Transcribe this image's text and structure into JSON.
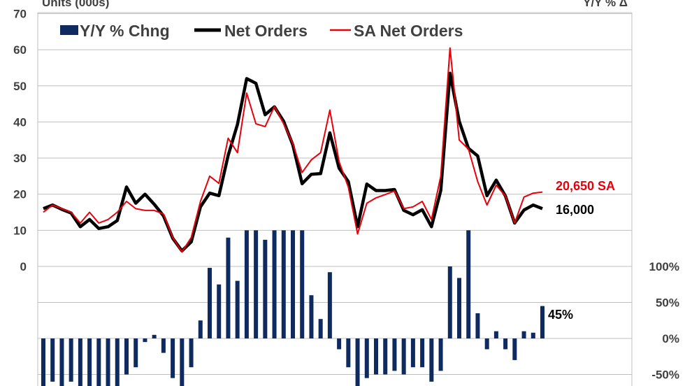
{
  "chart_data": {
    "type": "bar+line",
    "title": "",
    "left_axis": {
      "label": "Units (000s)",
      "ticks": [
        "70",
        "60",
        "50",
        "40",
        "30",
        "20",
        "10",
        "0"
      ],
      "ylim": [
        0,
        70
      ]
    },
    "right_axis": {
      "label": "Y/Y % Δ",
      "ticks": [
        "100%",
        "50%",
        "0%",
        "-50%"
      ]
    },
    "legend": {
      "placement": "top-left",
      "entries": [
        "Y/Y % Chng",
        "Net Orders",
        "SA Net Orders"
      ]
    },
    "series": [
      {
        "name": "Net Orders",
        "type": "line",
        "color": "#000000",
        "values": [
          16,
          17,
          15.8,
          14.8,
          11,
          13,
          10.5,
          11,
          12.7,
          22,
          17.5,
          20,
          17.2,
          14,
          7.8,
          4.3,
          6.8,
          16.5,
          20.3,
          19.6,
          30.7,
          39.3,
          52,
          50.7,
          42,
          44.2,
          40.2,
          33.6,
          22.9,
          25.5,
          25.7,
          37,
          27.2,
          23.5,
          11,
          22.8,
          21,
          21,
          21.3,
          15.5,
          14.3,
          15.7,
          11,
          21,
          53.5,
          40.2,
          32.7,
          30.6,
          19.6,
          23.9,
          19.5,
          12,
          15.6,
          17,
          16
        ]
      },
      {
        "name": "SA Net Orders",
        "type": "line",
        "color": "#e8000b",
        "values": [
          15,
          17,
          16,
          15,
          12,
          15,
          12,
          13,
          15,
          18,
          16,
          15.5,
          15.5,
          14.5,
          8,
          4,
          8,
          18,
          25,
          23,
          35.5,
          31.5,
          48,
          39.5,
          38.7,
          44.3,
          39.5,
          34,
          26,
          29.5,
          31.5,
          43.3,
          29,
          22,
          9,
          17.5,
          19,
          19.9,
          20.9,
          16,
          16.5,
          18,
          13,
          25,
          60.5,
          35,
          32.5,
          23.5,
          17,
          22.5,
          19.5,
          12,
          19.2,
          20.3,
          20.6
        ]
      },
      {
        "name": "Y/Y % Chng",
        "type": "bar",
        "color": "#0e2a5e",
        "values": [
          -70,
          -60,
          -70,
          -60,
          -70,
          -70,
          -70,
          -70,
          -70,
          -50,
          -40,
          -5,
          5,
          -20,
          -55,
          -70,
          -40,
          25,
          98,
          75,
          140,
          80,
          180,
          180,
          137,
          180,
          180,
          180,
          180,
          60,
          27,
          92,
          -15,
          -40,
          -70,
          -55,
          -50,
          -50,
          -45,
          -50,
          -40,
          -40,
          -60,
          -45,
          100,
          84,
          160,
          35,
          -15,
          10,
          -15,
          -30,
          10,
          8,
          45
        ]
      }
    ],
    "annotations": {
      "sa_last": "20,650 SA",
      "net_last": "16,000",
      "yoy_last": "45%"
    }
  }
}
